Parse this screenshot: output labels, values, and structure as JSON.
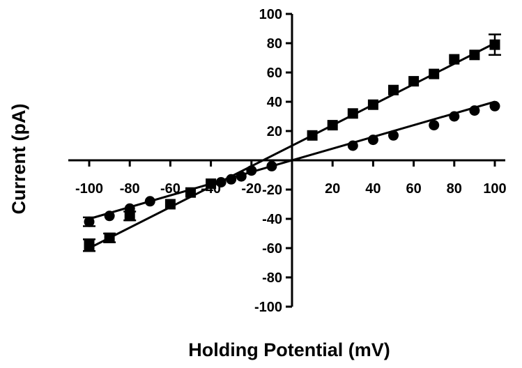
{
  "chart_data": {
    "type": "scatter",
    "xlabel": "Holding Potential  (mV)",
    "ylabel": "Current (pA)",
    "xlim": [
      -100,
      100
    ],
    "ylim": [
      -100,
      100
    ],
    "x_ticks": [
      "-100",
      "-80",
      "-60",
      "-40",
      "-20",
      "20",
      "40",
      "60",
      "80",
      "100"
    ],
    "x_tick_values": [
      -100,
      -80,
      -60,
      -40,
      -20,
      20,
      40,
      60,
      80,
      100
    ],
    "y_ticks": [
      "100",
      "80",
      "60",
      "40",
      "20",
      "-20",
      "-40",
      "-60",
      "-80",
      "-100"
    ],
    "y_tick_values": [
      100,
      80,
      60,
      40,
      20,
      -20,
      -40,
      -60,
      -80,
      -100
    ],
    "grid": false,
    "colors": {
      "marks": "#000000",
      "background": "#ffffff"
    },
    "series": [
      {
        "marker": "square",
        "x": [
          -100,
          -90,
          -80,
          -60,
          -50,
          -40,
          10,
          20,
          30,
          40,
          50,
          60,
          70,
          80,
          90,
          100
        ],
        "y": [
          -58,
          -53,
          -38,
          -30,
          -22,
          -16,
          17,
          24,
          32,
          38,
          48,
          54,
          59,
          69,
          72,
          79
        ],
        "error": [
          4,
          3,
          3,
          2,
          1,
          1,
          1,
          1,
          1,
          1,
          1,
          1,
          1,
          1,
          2,
          7
        ],
        "fit": {
          "x": [
            -100,
            100
          ],
          "y": [
            -60,
            80
          ]
        }
      },
      {
        "marker": "circle",
        "x": [
          -100,
          -90,
          -80,
          -70,
          -35,
          -30,
          -25,
          -20,
          -10,
          30,
          40,
          50,
          70,
          80,
          90,
          100
        ],
        "y": [
          -42,
          -38,
          -33,
          -28,
          -15,
          -13,
          -11,
          -7,
          -4,
          10,
          14,
          17,
          24,
          30,
          34,
          37
        ],
        "error": [
          3,
          2,
          1,
          1,
          1,
          1,
          1,
          1,
          1,
          1,
          1,
          1,
          1,
          1,
          1,
          1
        ],
        "fit": {
          "x": [
            -100,
            100
          ],
          "y": [
            -40,
            40
          ]
        }
      }
    ]
  }
}
